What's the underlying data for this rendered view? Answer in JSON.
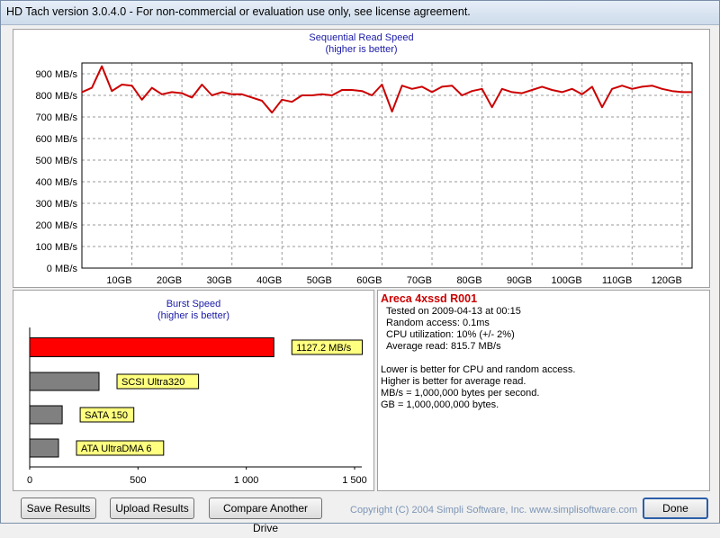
{
  "window": {
    "title": "HD Tach version 3.0.4.0  - For non-commercial or evaluation use only, see license agreement."
  },
  "sequential": {
    "title": "Sequential Read Speed",
    "subtitle": "(higher is better)"
  },
  "burst": {
    "title": "Burst Speed",
    "subtitle": "(higher is better)"
  },
  "info": {
    "drive_name": "Areca 4xssd R001",
    "tested_on": "Tested on 2009-04-13 at 00:15",
    "random_access": "Random access: 0.1ms",
    "cpu": "CPU utilization: 10% (+/- 2%)",
    "avg_read": "Average read: 815.7 MB/s",
    "note1": "Lower is better for CPU and random access.",
    "note2": "Higher is better for average read.",
    "note3": "MB/s = 1,000,000 bytes per second.",
    "note4": "GB = 1,000,000,000 bytes."
  },
  "buttons": {
    "save": "Save Results",
    "upload": "Upload Results",
    "compare": "Compare Another Drive",
    "done": "Done"
  },
  "copyright": "Copyright (C) 2004 Simpli Software, Inc. www.simplisoftware.com",
  "colors": {
    "drive_line": "#cc0000",
    "drive_bar": "#ff0000",
    "reference_bar": "#808080",
    "label_bg": "#ffff80",
    "title_blue": "#1a1aa8",
    "drive_name": "#cc0000"
  },
  "chart_data": [
    {
      "type": "line",
      "title": "Sequential Read Speed",
      "subtitle": "(higher is better)",
      "xlabel": "",
      "ylabel": "",
      "xlim": [
        0,
        122
      ],
      "ylim": [
        0,
        950
      ],
      "y_ticks": [
        0,
        100,
        200,
        300,
        400,
        500,
        600,
        700,
        800,
        900
      ],
      "y_tick_labels": [
        "0 MB/s",
        "100 MB/s",
        "200 MB/s",
        "300 MB/s",
        "400 MB/s",
        "500 MB/s",
        "600 MB/s",
        "700 MB/s",
        "800 MB/s",
        "900 MB/s"
      ],
      "x_ticks": [
        10,
        20,
        30,
        40,
        50,
        60,
        70,
        80,
        90,
        100,
        110,
        120
      ],
      "x_tick_labels": [
        "10GB",
        "20GB",
        "30GB",
        "40GB",
        "50GB",
        "60GB",
        "70GB",
        "80GB",
        "90GB",
        "100GB",
        "110GB",
        "120GB"
      ],
      "grid": true,
      "series": [
        {
          "x": [
            0,
            2,
            4,
            6,
            8,
            10,
            12,
            14,
            16,
            18,
            20,
            22,
            24,
            26,
            28,
            30,
            32,
            34,
            36,
            38,
            40,
            42,
            44,
            46,
            48,
            50,
            52,
            54,
            56,
            58,
            60,
            62,
            64,
            66,
            68,
            70,
            72,
            74,
            76,
            78,
            80,
            82,
            84,
            86,
            88,
            90,
            92,
            94,
            96,
            98,
            100,
            102,
            104,
            106,
            108,
            110,
            112,
            114,
            116,
            118,
            120,
            122
          ],
          "y": [
            815,
            835,
            935,
            820,
            850,
            845,
            780,
            835,
            805,
            815,
            810,
            790,
            850,
            800,
            815,
            805,
            805,
            790,
            775,
            720,
            780,
            770,
            800,
            800,
            805,
            800,
            825,
            825,
            820,
            800,
            850,
            725,
            845,
            830,
            840,
            815,
            840,
            845,
            800,
            820,
            830,
            745,
            830,
            815,
            810,
            825,
            840,
            825,
            815,
            830,
            805,
            840,
            745,
            830,
            845,
            830,
            840,
            845,
            830,
            820,
            815,
            815
          ]
        }
      ]
    },
    {
      "type": "bar",
      "orientation": "horizontal",
      "title": "Burst Speed",
      "subtitle": "(higher is better)",
      "xlim": [
        0,
        1500
      ],
      "x_ticks": [
        0,
        500,
        1000,
        1500
      ],
      "x_tick_labels": [
        "0",
        "500",
        "1 000",
        "1 500"
      ],
      "grid": false,
      "bars": [
        {
          "label": "1127.2 MB/s",
          "value": 1127.2,
          "is_drive": true
        },
        {
          "label": "SCSI Ultra320",
          "value": 320,
          "is_drive": false
        },
        {
          "label": "SATA 150",
          "value": 150,
          "is_drive": false
        },
        {
          "label": "ATA UltraDMA 6",
          "value": 133,
          "is_drive": false
        }
      ]
    }
  ]
}
